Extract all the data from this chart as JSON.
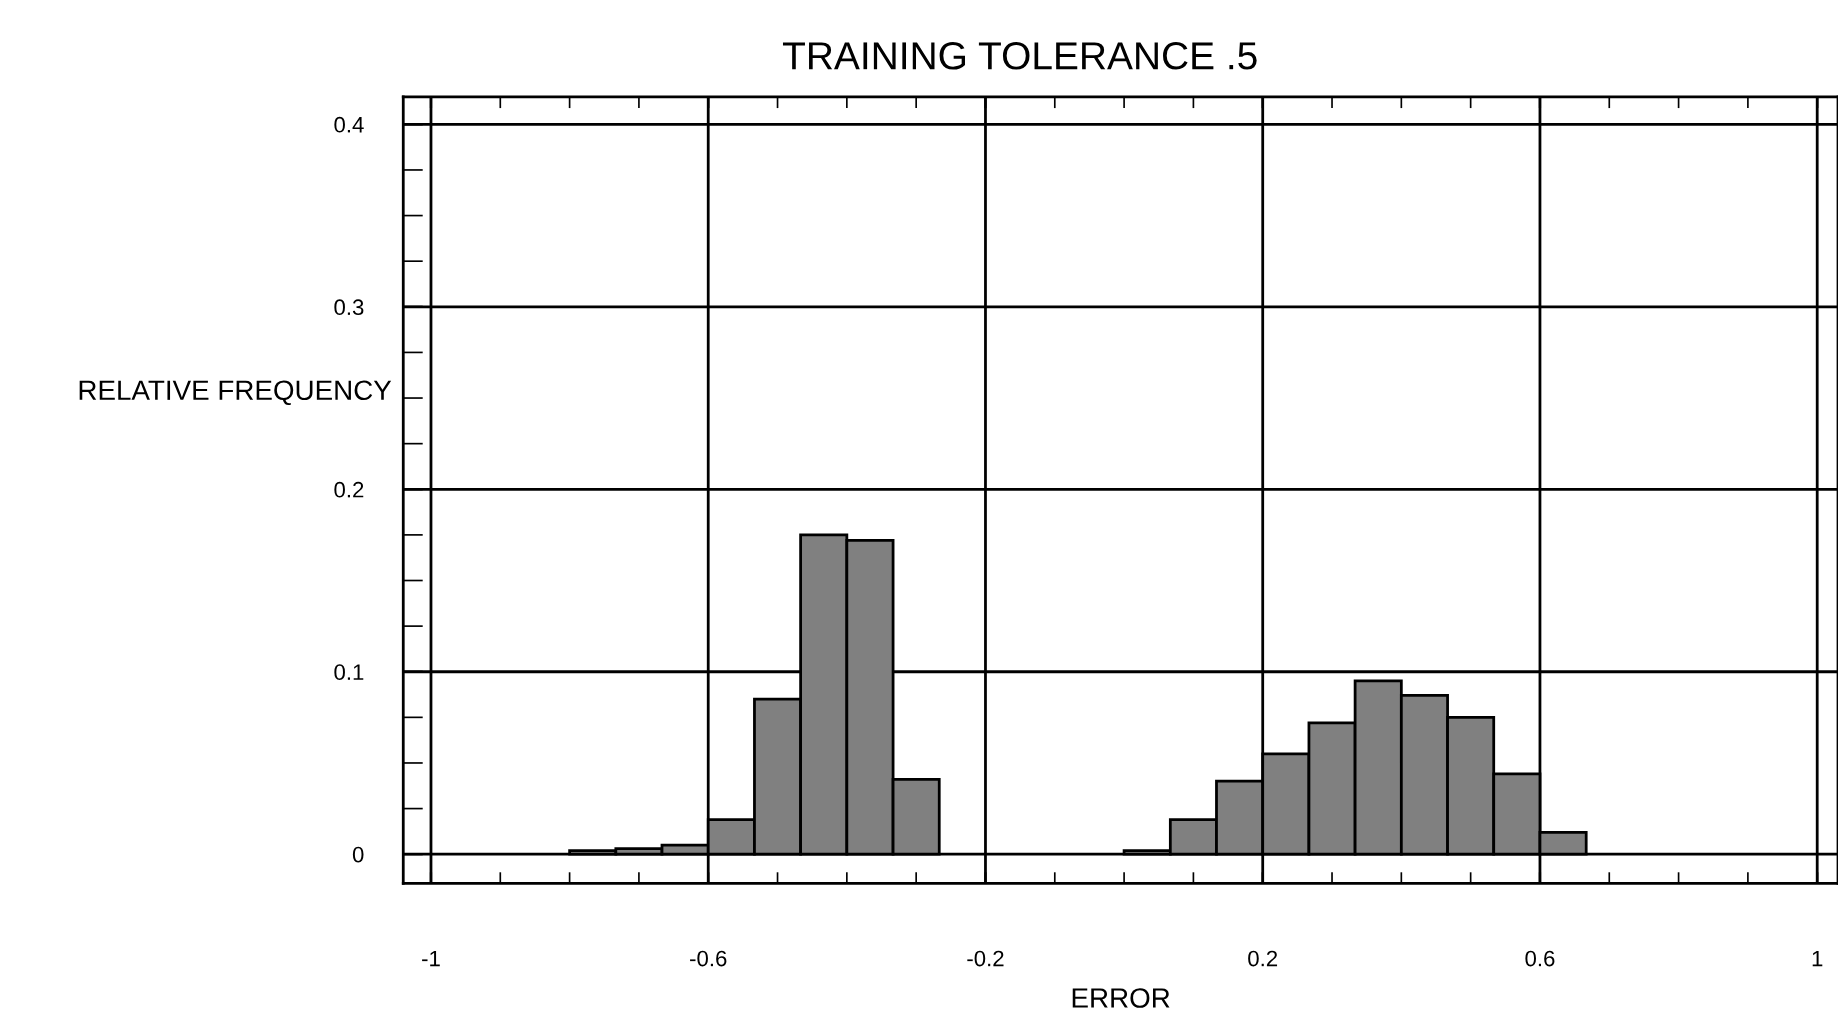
{
  "chart_data": {
    "type": "histogram",
    "title": "TRAINING TOLERANCE .5",
    "xlabel": "ERROR",
    "ylabel": "RELATIVE FREQUENCY",
    "bins": [
      -1,
      -0.9333,
      -0.8667,
      -0.8,
      -0.7333,
      -0.6667,
      -0.6,
      -0.5333,
      -0.4667,
      -0.4,
      -0.3333,
      -0.2667,
      -0.2,
      -0.1333,
      -0.0667,
      0,
      0.0667,
      0.1333,
      0.2,
      0.2667,
      0.3333,
      0.4,
      0.4667,
      0.5333,
      0.6,
      0.6667,
      0.7333,
      0.8,
      0.8667,
      0.9333,
      1
    ],
    "values": [
      0,
      0,
      0,
      0.002,
      0.003,
      0.005,
      0.019,
      0.085,
      0.175,
      0.172,
      0.041,
      0,
      0,
      0,
      0,
      0.002,
      0.019,
      0.04,
      0.055,
      0.072,
      0.095,
      0.087,
      0.075,
      0.044,
      0.012,
      0,
      0,
      0,
      0,
      0
    ],
    "color": "#808080",
    "xlim": [
      -1.04,
      1.03
    ],
    "ylim": [
      -0.016,
      0.415
    ],
    "xticks": [
      -1,
      -0.6,
      -0.2,
      0.2,
      0.6,
      1
    ],
    "yticks": [
      0,
      0.1,
      0.2,
      0.3,
      0.4
    ],
    "grid": true
  }
}
